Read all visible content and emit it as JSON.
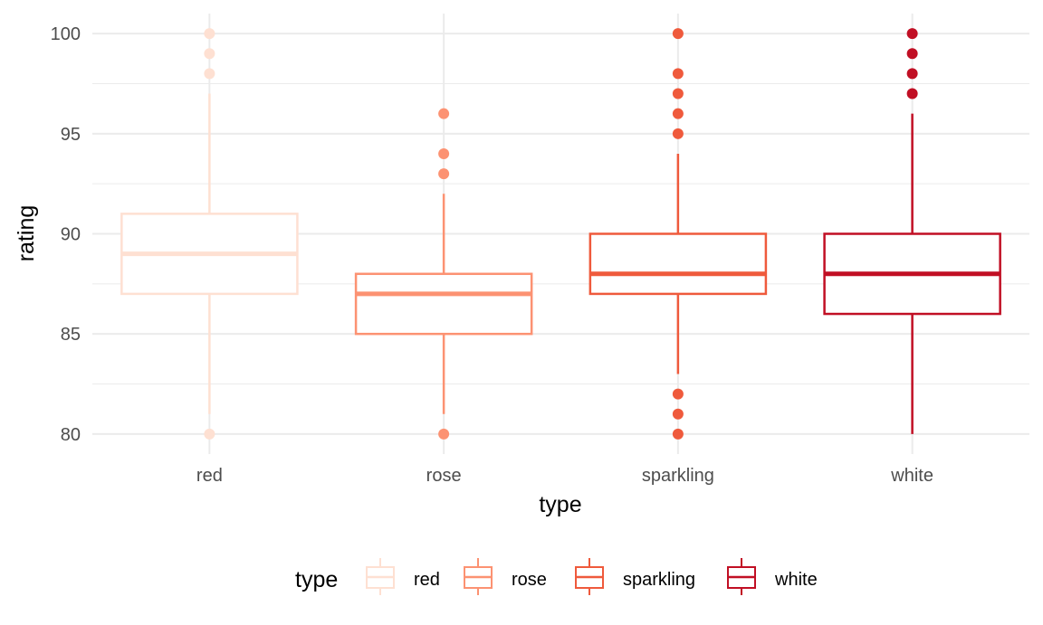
{
  "chart_data": {
    "type": "boxplot",
    "xlabel": "type",
    "ylabel": "rating",
    "categories": [
      "red",
      "rose",
      "sparkling",
      "white"
    ],
    "y_ticks": [
      80,
      85,
      90,
      95,
      100
    ],
    "ylim": [
      79.0,
      101.0
    ],
    "grid": true,
    "legend": {
      "title": "type",
      "position": "bottom",
      "entries": [
        "red",
        "rose",
        "sparkling",
        "white"
      ]
    },
    "series": [
      {
        "category": "red",
        "color": "#fee0d2",
        "q1": 87,
        "median": 89,
        "q3": 91,
        "whisker_low": 81,
        "whisker_high": 97,
        "outliers": [
          80,
          98,
          99,
          100
        ]
      },
      {
        "category": "rose",
        "color": "#fc9272",
        "q1": 85,
        "median": 87,
        "q3": 88,
        "whisker_low": 81,
        "whisker_high": 92,
        "outliers": [
          80,
          93,
          94,
          96
        ]
      },
      {
        "category": "sparkling",
        "color": "#ef5a3c",
        "q1": 87,
        "median": 88,
        "q3": 90,
        "whisker_low": 83,
        "whisker_high": 94,
        "outliers": [
          80,
          81,
          82,
          95,
          96,
          97,
          98,
          100
        ]
      },
      {
        "category": "white",
        "color": "#c10f24",
        "q1": 86,
        "median": 88,
        "q3": 90,
        "whisker_low": 80,
        "whisker_high": 96,
        "outliers": [
          97,
          98,
          99,
          100
        ]
      }
    ]
  }
}
